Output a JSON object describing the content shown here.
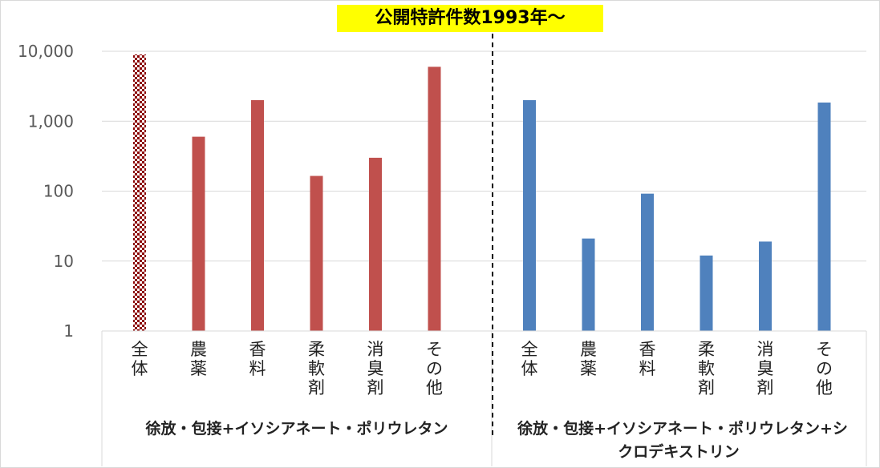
{
  "chart_data": {
    "type": "bar",
    "title": "公開特許件数1993年～",
    "y_scale": "log",
    "ylim": [
      1,
      10000
    ],
    "y_ticks": [
      1,
      10,
      100,
      1000,
      10000
    ],
    "y_tick_labels": [
      "1",
      "10",
      "100",
      "1,000",
      "10,000"
    ],
    "grid": true,
    "legend": "none",
    "groups": [
      {
        "label": "徐放・包接+イソシアネート・ポリウレタン",
        "color": "#c0504d",
        "categories": [
          "全体",
          "農薬",
          "香料",
          "柔軟剤",
          "消臭剤",
          "その他"
        ],
        "values": [
          9000,
          600,
          2000,
          165,
          300,
          6000
        ],
        "highlight": "全体"
      },
      {
        "label_lines": [
          "徐放・包接+イソシアネート・ポリウレタン+シ",
          "クロデキストリン"
        ],
        "color": "#4f81bd",
        "categories": [
          "全体",
          "農薬",
          "香料",
          "柔軟剤",
          "消臭剤",
          "その他"
        ],
        "values": [
          2000,
          21,
          92,
          12,
          19,
          1850
        ]
      }
    ]
  }
}
